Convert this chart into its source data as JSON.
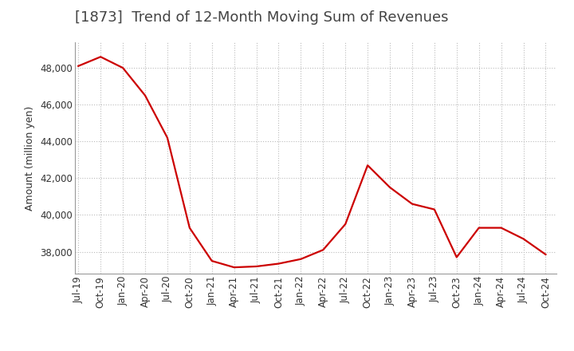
{
  "title": "[1873]  Trend of 12-Month Moving Sum of Revenues",
  "ylabel": "Amount (million yen)",
  "line_color": "#cc0000",
  "background_color": "#ffffff",
  "plot_bg_color": "#ffffff",
  "grid_color": "#bbbbbb",
  "title_color": "#444444",
  "x_labels": [
    "Jul-19",
    "Oct-19",
    "Jan-20",
    "Apr-20",
    "Jul-20",
    "Oct-20",
    "Jan-21",
    "Apr-21",
    "Jul-21",
    "Oct-21",
    "Jan-22",
    "Apr-22",
    "Jul-22",
    "Oct-22",
    "Jan-23",
    "Apr-23",
    "Jul-23",
    "Oct-23",
    "Jan-24",
    "Apr-24",
    "Jul-24",
    "Oct-24"
  ],
  "x_values": [
    0,
    3,
    6,
    9,
    12,
    15,
    18,
    21,
    24,
    27,
    30,
    33,
    36,
    39,
    42,
    45,
    48,
    51,
    54,
    57,
    60,
    63
  ],
  "y_values": [
    48100,
    48600,
    48000,
    46500,
    44200,
    39300,
    37500,
    37150,
    37200,
    37350,
    37600,
    38100,
    39500,
    42700,
    41500,
    40600,
    40300,
    37700,
    39300,
    39300,
    38700,
    37850
  ],
  "ylim": [
    36800,
    49400
  ],
  "yticks": [
    38000,
    40000,
    42000,
    44000,
    46000,
    48000
  ],
  "title_fontsize": 13,
  "ylabel_fontsize": 9,
  "tick_fontsize": 8.5,
  "line_width": 1.6
}
